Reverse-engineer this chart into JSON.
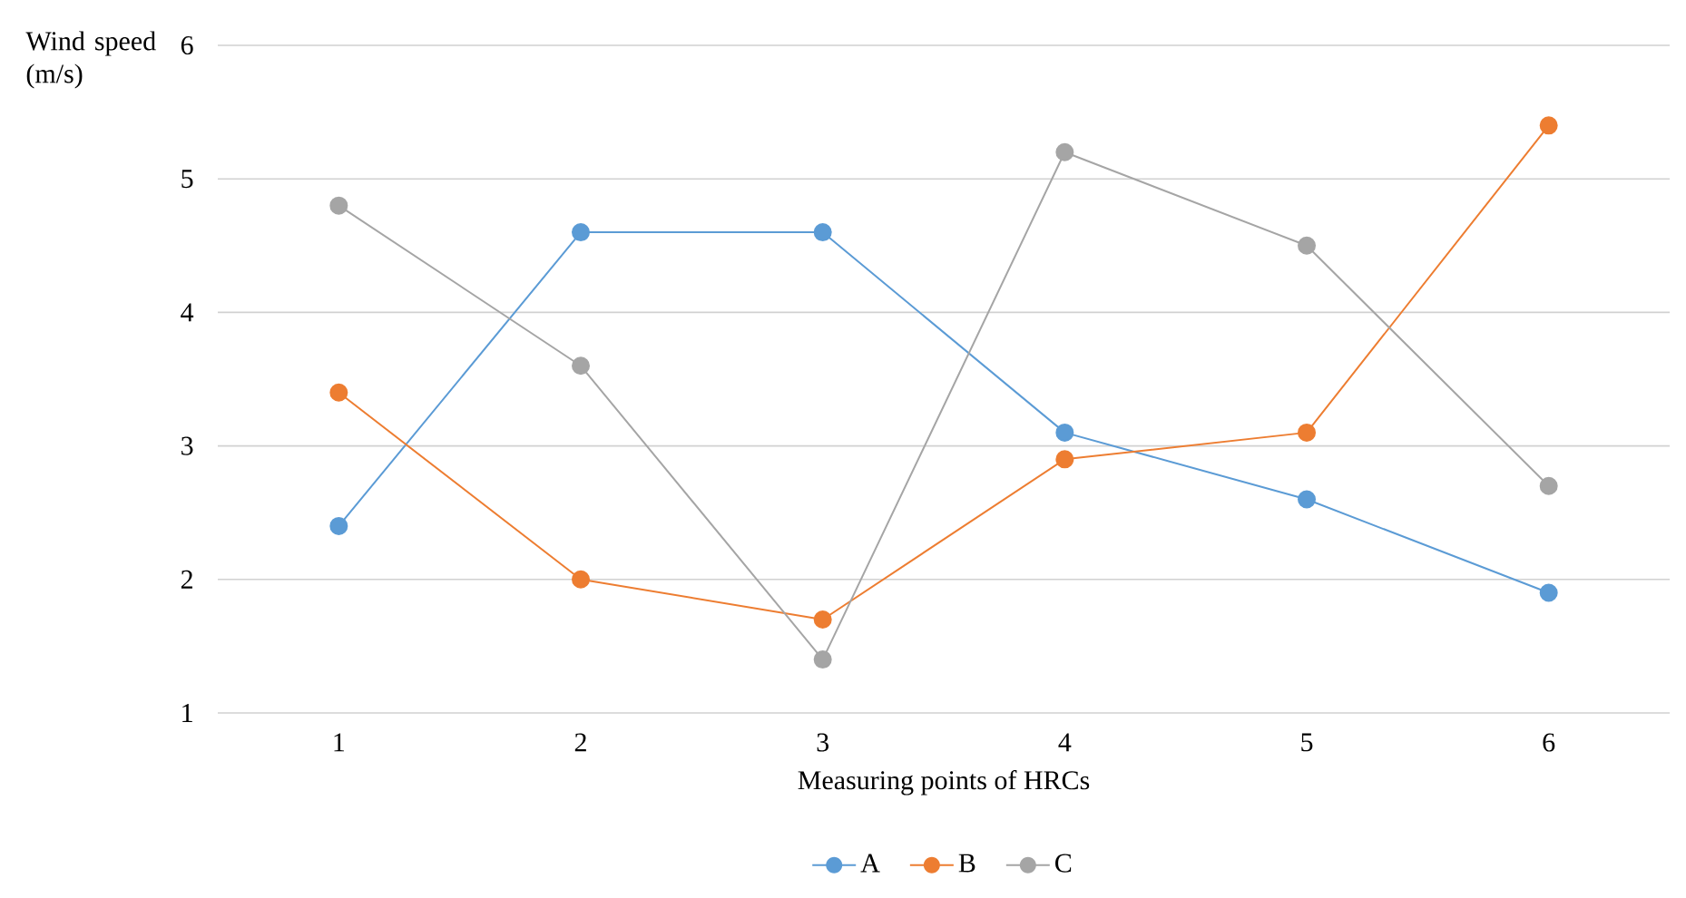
{
  "chart_data": {
    "type": "line",
    "xlabel": "Measuring points of HRCs",
    "ylabel": "Wind speed (m/s)",
    "categories": [
      "1",
      "2",
      "3",
      "4",
      "5",
      "6"
    ],
    "series": [
      {
        "name": "A",
        "color": "#5b9bd5",
        "values": [
          2.4,
          4.6,
          4.6,
          3.1,
          2.6,
          1.9
        ]
      },
      {
        "name": "B",
        "color": "#ed7d31",
        "values": [
          3.4,
          2.0,
          1.7,
          2.9,
          3.1,
          5.4
        ]
      },
      {
        "name": "C",
        "color": "#a5a5a5",
        "values": [
          4.8,
          3.6,
          1.4,
          5.2,
          4.5,
          2.7
        ]
      }
    ],
    "ylim": [
      1,
      6
    ],
    "yticks": [
      1,
      2,
      3,
      4,
      5,
      6
    ],
    "grid": "y",
    "legend": "bottom",
    "marker": "circle",
    "line_style": "solid"
  }
}
